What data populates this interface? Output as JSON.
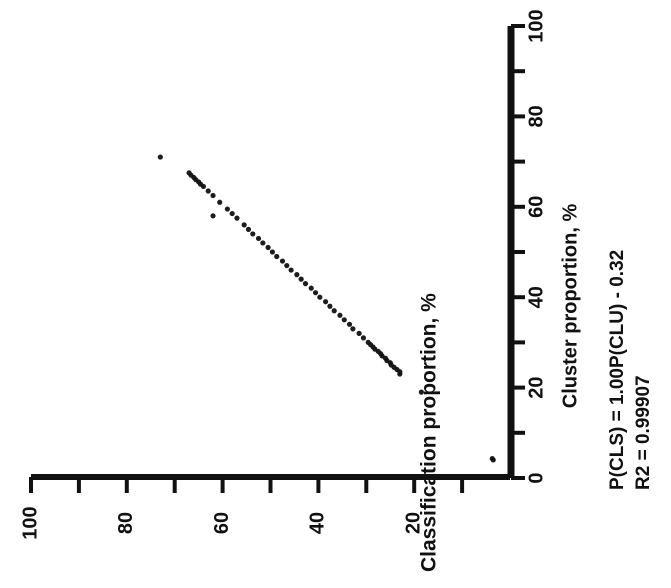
{
  "chart_data": {
    "type": "scatter",
    "orientation": "rotated 90° clockwise",
    "xlabel": "Cluster proportion, %",
    "ylabel": "Classification proportion, %",
    "xlim": [
      0,
      100
    ],
    "ylim": [
      0,
      100
    ],
    "x_ticks": [
      "0",
      "20",
      "40",
      "60",
      "80",
      "100"
    ],
    "y_ticks": [
      "20",
      "40",
      "60",
      "80",
      "100"
    ],
    "grid": false,
    "annotation": {
      "equation": "P(CLS) = 1.00P(CLU) - 0.32",
      "r_squared": "R2 = 0.99907"
    },
    "series": [
      {
        "points": [
          [
            4,
            3.5
          ],
          [
            4.3,
            3.7
          ],
          [
            19,
            18.5
          ],
          [
            23,
            23
          ],
          [
            23.5,
            23
          ],
          [
            24,
            23.6
          ],
          [
            24.5,
            24.2
          ],
          [
            25,
            24.8
          ],
          [
            25.5,
            25
          ],
          [
            26,
            25.7
          ],
          [
            26.5,
            26
          ],
          [
            27,
            26.7
          ],
          [
            27.5,
            27
          ],
          [
            28,
            27.5
          ],
          [
            28.5,
            28.2
          ],
          [
            29,
            28.6
          ],
          [
            29.5,
            29.1
          ],
          [
            30,
            29.6
          ],
          [
            31,
            30.6
          ],
          [
            32,
            31.5
          ],
          [
            33,
            32.8
          ],
          [
            34,
            33.5
          ],
          [
            35,
            34.6
          ],
          [
            36,
            35.5
          ],
          [
            37,
            36.7
          ],
          [
            38,
            37.6
          ],
          [
            39,
            38.5
          ],
          [
            40,
            39.7
          ],
          [
            41,
            40.6
          ],
          [
            42,
            41.5
          ],
          [
            43,
            42.7
          ],
          [
            44,
            43.6
          ],
          [
            45,
            44.5
          ],
          [
            46,
            45.7
          ],
          [
            47,
            46.6
          ],
          [
            48,
            47.5
          ],
          [
            49,
            48.7
          ],
          [
            50,
            49.6
          ],
          [
            51,
            50.5
          ],
          [
            52,
            51.6
          ],
          [
            53,
            52.5
          ],
          [
            54,
            53.7
          ],
          [
            55,
            54.6
          ],
          [
            56,
            55.5
          ],
          [
            57.5,
            57
          ],
          [
            58.5,
            58
          ],
          [
            59.5,
            59
          ],
          [
            58,
            62
          ],
          [
            61,
            60.6
          ],
          [
            62.5,
            62
          ],
          [
            63.5,
            63
          ],
          [
            64.5,
            64
          ],
          [
            65,
            64.6
          ],
          [
            65.5,
            65
          ],
          [
            66,
            65.6
          ],
          [
            66.5,
            66
          ],
          [
            67,
            66.6
          ],
          [
            67.5,
            67
          ],
          [
            71,
            73
          ]
        ]
      }
    ]
  }
}
